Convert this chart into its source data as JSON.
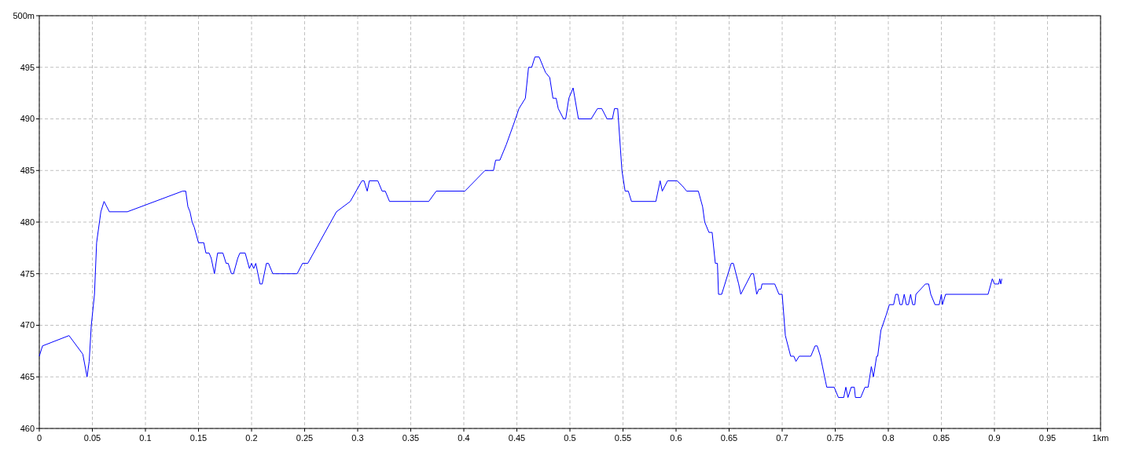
{
  "chart_data": {
    "type": "line",
    "x": [
      0,
      0.003,
      0.028,
      0.041,
      0.045,
      0.047,
      0.049,
      0.052,
      0.054,
      0.058,
      0.061,
      0.066,
      0.083,
      0.135,
      0.138,
      0.14,
      0.142,
      0.144,
      0.146,
      0.15,
      0.155,
      0.157,
      0.16,
      0.162,
      0.165,
      0.168,
      0.173,
      0.176,
      0.178,
      0.181,
      0.183,
      0.187,
      0.189,
      0.194,
      0.198,
      0.2,
      0.202,
      0.204,
      0.208,
      0.21,
      0.214,
      0.216,
      0.22,
      0.243,
      0.248,
      0.253,
      0.28,
      0.293,
      0.304,
      0.306,
      0.309,
      0.311,
      0.319,
      0.323,
      0.326,
      0.33,
      0.367,
      0.374,
      0.401,
      0.42,
      0.428,
      0.43,
      0.434,
      0.44,
      0.447,
      0.452,
      0.458,
      0.461,
      0.464,
      0.467,
      0.471,
      0.477,
      0.481,
      0.484,
      0.487,
      0.489,
      0.494,
      0.496,
      0.499,
      0.503,
      0.508,
      0.52,
      0.526,
      0.53,
      0.535,
      0.54,
      0.542,
      0.545,
      0.549,
      0.552,
      0.555,
      0.558,
      0.581,
      0.585,
      0.587,
      0.592,
      0.601,
      0.606,
      0.61,
      0.621,
      0.625,
      0.627,
      0.631,
      0.634,
      0.637,
      0.639,
      0.64,
      0.643,
      0.652,
      0.654,
      0.659,
      0.661,
      0.671,
      0.673,
      0.676,
      0.678,
      0.68,
      0.681,
      0.693,
      0.697,
      0.7,
      0.703,
      0.708,
      0.711,
      0.713,
      0.716,
      0.727,
      0.731,
      0.733,
      0.736,
      0.738,
      0.741,
      0.742,
      0.749,
      0.753,
      0.758,
      0.76,
      0.762,
      0.765,
      0.768,
      0.769,
      0.774,
      0.778,
      0.781,
      0.784,
      0.786,
      0.789,
      0.79,
      0.793,
      0.798,
      0.801,
      0.805,
      0.807,
      0.809,
      0.811,
      0.813,
      0.815,
      0.817,
      0.819,
      0.821,
      0.823,
      0.825,
      0.826,
      0.835,
      0.838,
      0.84,
      0.844,
      0.848,
      0.85,
      0.851,
      0.854,
      0.894,
      0.898,
      0.9,
      0.904,
      0.905,
      0.906,
      0.907
    ],
    "series": [
      {
        "color": "#0000ff",
        "values": [
          467,
          468,
          469,
          467.2,
          465,
          466.5,
          470,
          473,
          478,
          481,
          482,
          481,
          481,
          483,
          483,
          481.5,
          481,
          480,
          479.5,
          478,
          478,
          477,
          477,
          476.5,
          475,
          477,
          477,
          476,
          476,
          475,
          475,
          476.5,
          477,
          477,
          475.5,
          476,
          475.5,
          476,
          474,
          474,
          476,
          476,
          475,
          475,
          476,
          476,
          481,
          482,
          484,
          484,
          483,
          484,
          484,
          483,
          483,
          482,
          482,
          483,
          483,
          485,
          485,
          486,
          486,
          487.5,
          489.5,
          491,
          492,
          495,
          495,
          496,
          496,
          494.5,
          494,
          492,
          492,
          491,
          490,
          490,
          492,
          493,
          490,
          490,
          491,
          491,
          490,
          490,
          491,
          491,
          485,
          483,
          483,
          482,
          482,
          484,
          483,
          484,
          484,
          483.5,
          483,
          483,
          481.5,
          480,
          479,
          479,
          476,
          476,
          473,
          473,
          476,
          476,
          474,
          473,
          475,
          475,
          473,
          473.5,
          473.5,
          474,
          474,
          473,
          473,
          469,
          467,
          467,
          466.5,
          467,
          467,
          468,
          468,
          467,
          466,
          464.5,
          464,
          464,
          463,
          463,
          464,
          463,
          464,
          464,
          463,
          463,
          464,
          464,
          466,
          465,
          467,
          467,
          469.5,
          471,
          472,
          472,
          473,
          473,
          472,
          472,
          473,
          472,
          472,
          473,
          472,
          472,
          473,
          474,
          474,
          473,
          472,
          472,
          473,
          472,
          473,
          473,
          474.5,
          474,
          474,
          474.5,
          474,
          474.5
        ]
      }
    ],
    "xlim": [
      0,
      1
    ],
    "xticks": [
      0,
      0.05,
      0.1,
      0.15,
      0.2,
      0.25,
      0.3,
      0.35,
      0.4,
      0.45,
      0.5,
      0.55,
      0.6,
      0.65,
      0.7,
      0.75,
      0.8,
      0.85,
      0.9,
      0.95,
      {
        "value": 1,
        "label": "1km"
      }
    ],
    "ylim": [
      460,
      500
    ],
    "yticks": [
      460,
      465,
      470,
      475,
      480,
      485,
      490,
      495,
      {
        "value": 500,
        "label": "500m"
      }
    ],
    "grid": true,
    "marker": "none",
    "line_style": "solid"
  }
}
